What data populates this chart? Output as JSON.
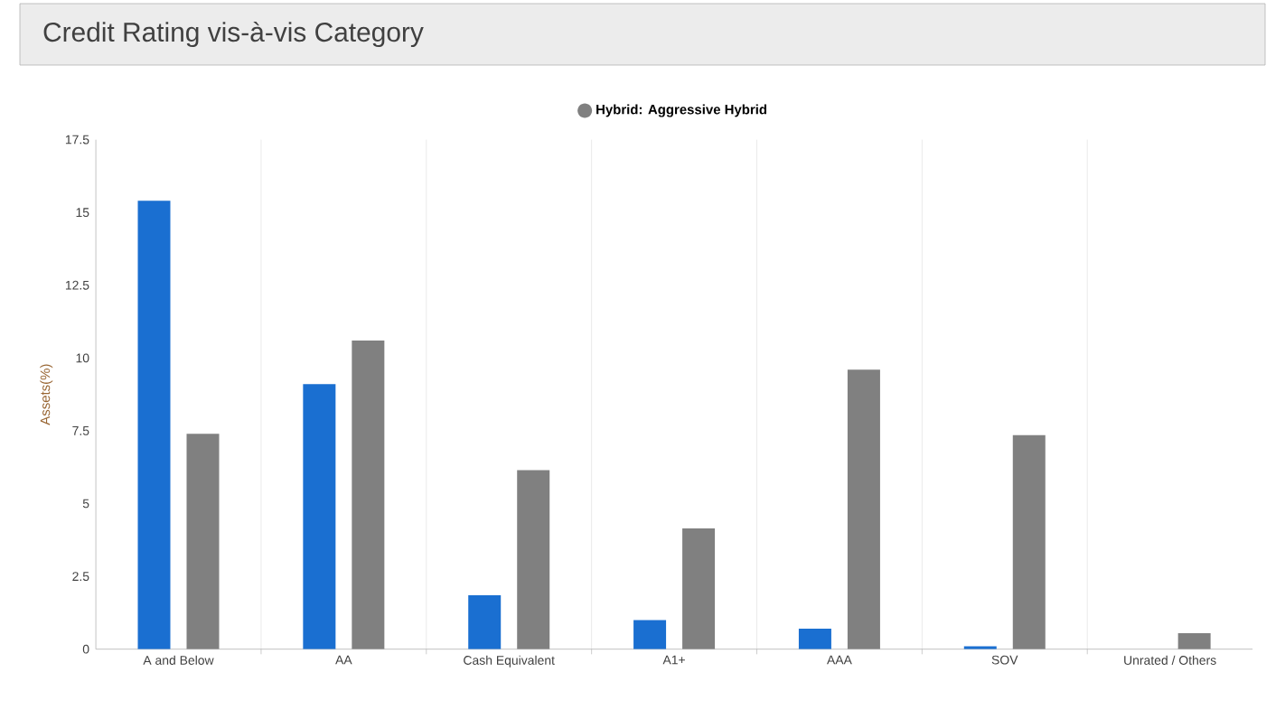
{
  "chart_data": {
    "type": "bar",
    "title": "Credit Rating vis-à-vis Category",
    "ylabel": "Assets(%)",
    "categories": [
      "A and Below",
      "AA",
      "Cash Equivalent",
      "A1+",
      "AAA",
      "SOV",
      "Unrated / Others"
    ],
    "series": [
      {
        "color": "#1a6fd1",
        "values": [
          15.4,
          9.1,
          1.85,
          1.0,
          0.7,
          0.1,
          0
        ]
      },
      {
        "name": "Hybrid: Aggressive Hybrid",
        "color": "#808080",
        "values": [
          7.4,
          10.6,
          6.15,
          4.15,
          9.6,
          7.35,
          0.55
        ]
      }
    ],
    "ylim": [
      0,
      17.5
    ],
    "yticks": [
      0,
      2.5,
      5,
      7.5,
      10,
      12.5,
      15,
      17.5
    ],
    "grid": "x",
    "legend": "top"
  }
}
